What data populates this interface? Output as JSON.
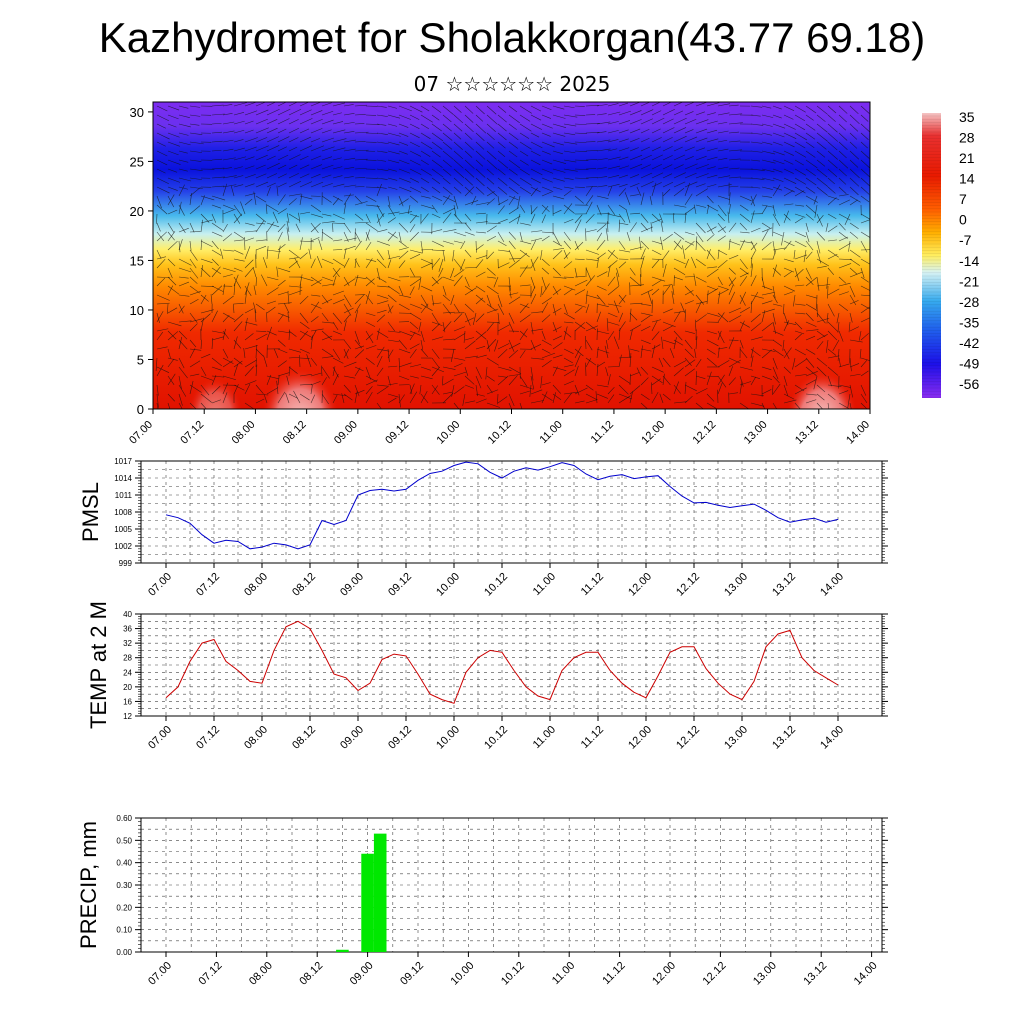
{
  "header": {
    "title": "Kazhydromet for Sholakkorgan(43.77 69.18)",
    "subtitle": "07 ☆☆☆☆☆☆ 2025"
  },
  "chart_data": [
    {
      "type": "heatmap",
      "name": "cross-section",
      "x_tick_labels": [
        "07.00",
        "07.12",
        "08.00",
        "08.12",
        "09.00",
        "09.12",
        "10.00",
        "10.12",
        "11.00",
        "11.12",
        "12.00",
        "12.12",
        "13.00",
        "13.12",
        "14.00"
      ],
      "y_tick_labels": [
        "0",
        "5",
        "10",
        "15",
        "20",
        "25",
        "30"
      ],
      "ylim": [
        0,
        31
      ],
      "colorbar": {
        "labels": [
          "35",
          "28",
          "21",
          "14",
          "7",
          "0",
          "-7",
          "-14",
          "-21",
          "-28",
          "-35",
          "-42",
          "-49",
          "-56"
        ]
      },
      "colors": {
        "warm_peak": "#f4b6b4",
        "red": "#e81400",
        "orange": "#ff8c00",
        "yellow": "#ffe857",
        "cyan": "#3ab4e6",
        "blue": "#0a18e8",
        "violet": "#7d2cf0"
      }
    },
    {
      "type": "line",
      "ylabel": "PMSL",
      "y_tick_labels": [
        "1017",
        "1014",
        "1011",
        "1008",
        "1005",
        "1002",
        "999"
      ],
      "ylim": [
        999,
        1017
      ],
      "color": "#0000cc",
      "x_tick_labels": [
        "07.00",
        "07.12",
        "08.00",
        "08.12",
        "09.00",
        "09.12",
        "10.00",
        "10.12",
        "11.00",
        "11.12",
        "12.00",
        "12.12",
        "13.00",
        "13.12",
        "14.00"
      ],
      "values": [
        1007.5,
        1007,
        1006,
        1004,
        1002.5,
        1003,
        1002.8,
        1001.5,
        1001.8,
        1002.5,
        1002.2,
        1001.5,
        1002.2,
        1006.5,
        1005.8,
        1006.5,
        1011,
        1011.8,
        1012,
        1011.7,
        1012,
        1013.6,
        1014.8,
        1015.2,
        1016.2,
        1016.8,
        1016.5,
        1015,
        1014,
        1015.2,
        1015.8,
        1015.4,
        1016,
        1016.7,
        1016.2,
        1014.7,
        1013.7,
        1014.3,
        1014.6,
        1013.9,
        1014.2,
        1014.4,
        1012.5,
        1010.8,
        1009.6,
        1009.7,
        1009.2,
        1008.8,
        1009.1,
        1009.4,
        1008.3,
        1007,
        1006.2,
        1006.6,
        1006.9,
        1006.2,
        1006.7
      ]
    },
    {
      "type": "line",
      "ylabel": "TEMP at 2 M",
      "y_tick_labels": [
        "40",
        "36",
        "32",
        "28",
        "24",
        "20",
        "16",
        "12"
      ],
      "ylim": [
        12,
        40
      ],
      "color": "#cc0000",
      "x_tick_labels": [
        "07.00",
        "07.12",
        "08.00",
        "08.12",
        "09.00",
        "09.12",
        "10.00",
        "10.12",
        "11.00",
        "11.12",
        "12.00",
        "12.12",
        "13.00",
        "13.12",
        "14.00"
      ],
      "values": [
        17,
        20,
        27,
        32,
        33,
        27,
        24.5,
        21.5,
        21,
        30,
        36.5,
        38,
        36,
        30,
        23.5,
        22.5,
        19,
        21,
        27.5,
        29,
        28.5,
        23.5,
        18,
        16.5,
        15.5,
        24,
        28,
        30,
        29.5,
        24.5,
        20,
        17.5,
        16.5,
        24.5,
        28,
        29.5,
        29.5,
        24.5,
        21,
        18.5,
        17,
        23,
        29.5,
        31,
        31,
        25,
        21,
        18,
        16.5,
        21.5,
        31,
        34.5,
        35.5,
        28,
        24.5,
        22.5,
        20.5
      ]
    },
    {
      "type": "bar",
      "ylabel": "PRECIP, mm",
      "y_tick_labels": [
        "0.60",
        "0.50",
        "0.40",
        "0.30",
        "0.20",
        "0.10",
        "0.00"
      ],
      "ylim": [
        0,
        0.6
      ],
      "color": "#00e800",
      "x_tick_labels": [
        "07.00",
        "07.12",
        "08.00",
        "08.12",
        "09.00",
        "09.12",
        "10.00",
        "10.12",
        "11.00",
        "11.12",
        "12.00",
        "12.12",
        "13.00",
        "13.12",
        "14.00"
      ],
      "values": [
        0,
        0,
        0,
        0,
        0,
        0,
        0,
        0,
        0,
        0,
        0,
        0,
        0,
        0,
        0.01,
        0,
        0.44,
        0.53,
        0,
        0,
        0,
        0,
        0,
        0,
        0,
        0,
        0,
        0,
        0,
        0,
        0,
        0,
        0,
        0,
        0,
        0,
        0,
        0,
        0,
        0,
        0,
        0,
        0,
        0,
        0,
        0,
        0,
        0,
        0,
        0,
        0,
        0,
        0,
        0,
        0,
        0,
        0
      ]
    }
  ]
}
